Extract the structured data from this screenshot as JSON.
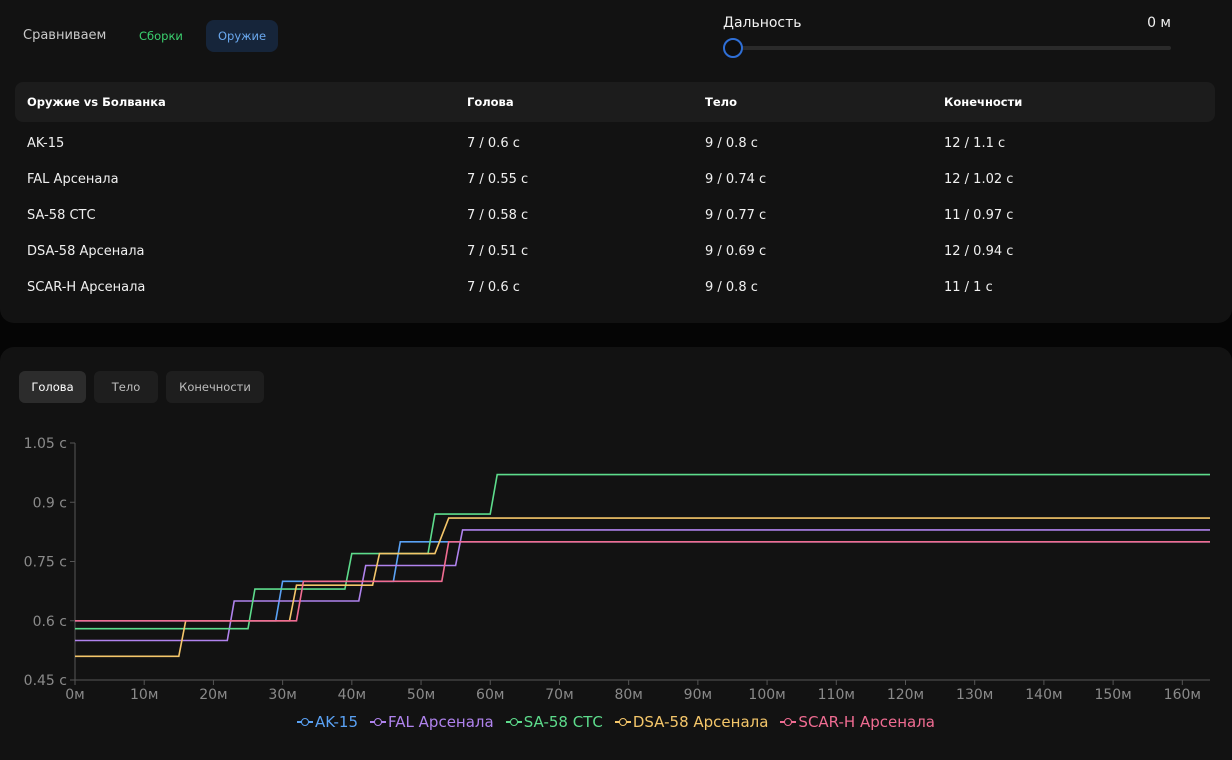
{
  "header": {
    "compare_label": "Сравниваем",
    "toggle_builds": "Сборки",
    "toggle_weapons": "Оружие",
    "range_label": "Дальность",
    "range_value": "0 м",
    "range_position": 0
  },
  "table": {
    "columns": [
      "Оружие vs Болванка",
      "Голова",
      "Тело",
      "Конечности"
    ],
    "rows": [
      [
        "AK-15",
        "7 / 0.6 с",
        "9 / 0.8 с",
        "12 / 1.1 с"
      ],
      [
        "FAL Арсенала",
        "7 / 0.55 с",
        "9 / 0.74 с",
        "12 / 1.02 с"
      ],
      [
        "SA-58 СТС",
        "7 / 0.58 с",
        "9 / 0.77 с",
        "11 / 0.97 с"
      ],
      [
        "DSA-58 Арсенала",
        "7 / 0.51 с",
        "9 / 0.69 с",
        "12 / 0.94 с"
      ],
      [
        "SCAR-H Арсенала",
        "7 / 0.6 с",
        "9 / 0.8 с",
        "11 / 1 с"
      ]
    ]
  },
  "tabs": {
    "head": "Голова",
    "body": "Тело",
    "limbs": "Конечности",
    "active": "head"
  },
  "colors": {
    "ak15": "#5aa2f5",
    "fal": "#b083ee",
    "sa58": "#5ddc8c",
    "dsa58": "#f4c66a",
    "scar": "#f06c92"
  },
  "chart_data": {
    "type": "line",
    "x_ticks": [
      "0м",
      "10м",
      "20м",
      "30м",
      "40м",
      "50м",
      "60м",
      "70м",
      "80м",
      "90м",
      "100м",
      "110м",
      "120м",
      "130м",
      "140м",
      "150м",
      "160м"
    ],
    "y_ticks": [
      "0.45 с",
      "0.6 с",
      "0.75 с",
      "0.9 с",
      "1.05 с"
    ],
    "xlim": [
      0,
      164
    ],
    "ylim": [
      0.45,
      1.05
    ],
    "series": [
      {
        "name": "AK-15",
        "color": "#5aa2f5",
        "points": [
          [
            0,
            0.6
          ],
          [
            29,
            0.6
          ],
          [
            30,
            0.7
          ],
          [
            46,
            0.7
          ],
          [
            47,
            0.8
          ],
          [
            164,
            0.8
          ]
        ]
      },
      {
        "name": "FAL Арсенала",
        "color": "#b083ee",
        "points": [
          [
            0,
            0.55
          ],
          [
            22,
            0.55
          ],
          [
            23,
            0.65
          ],
          [
            41,
            0.65
          ],
          [
            42,
            0.74
          ],
          [
            55,
            0.74
          ],
          [
            56,
            0.83
          ],
          [
            164,
            0.83
          ]
        ]
      },
      {
        "name": "SA-58 СТС",
        "color": "#5ddc8c",
        "points": [
          [
            0,
            0.58
          ],
          [
            25,
            0.58
          ],
          [
            26,
            0.68
          ],
          [
            39,
            0.68
          ],
          [
            40,
            0.77
          ],
          [
            51,
            0.77
          ],
          [
            52,
            0.87
          ],
          [
            60,
            0.87
          ],
          [
            61,
            0.97
          ],
          [
            164,
            0.97
          ]
        ]
      },
      {
        "name": "DSA-58 Арсенала",
        "color": "#f4c66a",
        "points": [
          [
            0,
            0.51
          ],
          [
            15,
            0.51
          ],
          [
            16,
            0.6
          ],
          [
            31,
            0.6
          ],
          [
            32,
            0.69
          ],
          [
            43,
            0.69
          ],
          [
            44,
            0.77
          ],
          [
            52,
            0.77
          ],
          [
            54,
            0.86
          ],
          [
            164,
            0.86
          ]
        ]
      },
      {
        "name": "SCAR-H Арсенала",
        "color": "#f06c92",
        "points": [
          [
            0,
            0.6
          ],
          [
            32,
            0.6
          ],
          [
            33,
            0.7
          ],
          [
            53,
            0.7
          ],
          [
            54,
            0.8
          ],
          [
            164,
            0.8
          ]
        ]
      }
    ]
  }
}
